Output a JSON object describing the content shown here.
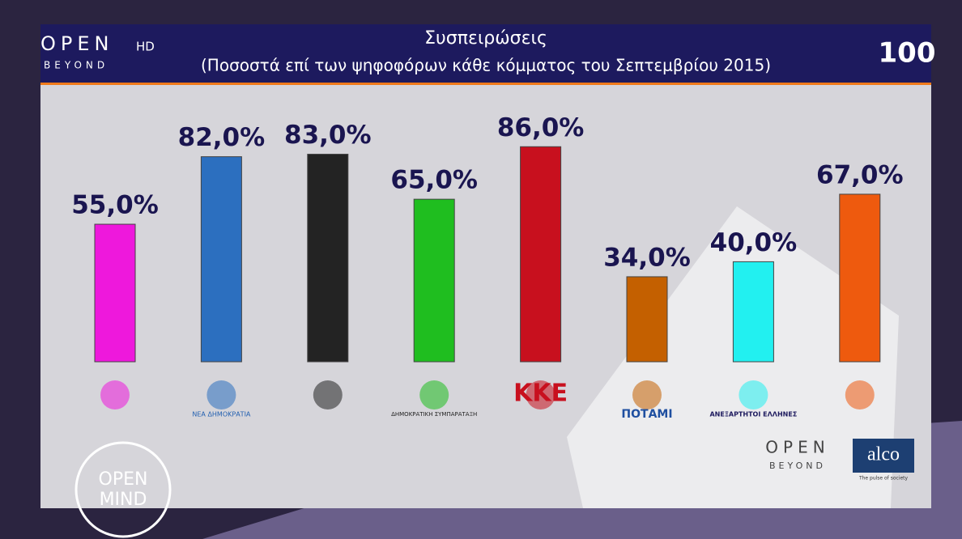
{
  "chart_data": {
    "type": "bar",
    "title": "Συσπειρώσεις",
    "subtitle": "(Ποσοστά επί των ψηφοφόρων κάθε κόμματος του Σεπτεμβρίου 2015)",
    "categories": [
      null,
      "ΝΕΑ ΔΗΜΟΚΡΑΤΙΑ",
      null,
      "ΔΗΜΟΚΡΑΤΙΚΗ ΣΥΜΠΑΡΑΤΑΞΗ",
      "ΚΚΕ",
      "ΠΟΤΑΜΙ",
      "ΑΝΕΞΑΡΤΗΤΟΙ ΕΛΛΗΝΕΣ",
      null
    ],
    "values": [
      55,
      82,
      83,
      65,
      86,
      34,
      40,
      67
    ],
    "value_labels": [
      "55,0%",
      "82,0%",
      "83,0%",
      "65,0%",
      "86,0%",
      "34,0%",
      "40,0%",
      "67,0%"
    ],
    "colors": [
      "#ee18dc",
      "#2c6fbf",
      "#232323",
      "#1fbe1f",
      "#c8101e",
      "#c46000",
      "#22f0f0",
      "#ee5a0e"
    ]
  },
  "branding": {
    "channel": "OPEN",
    "channel_hd": "HD",
    "channel_sub": "BEYOND",
    "anniversary": "100",
    "footer_channel": "OPEN",
    "footer_channel_sub": "BEYOND",
    "pollster": "alco",
    "pollster_tagline": "The pulse of society",
    "show_1": "OPEN",
    "show_2": "MIND"
  }
}
